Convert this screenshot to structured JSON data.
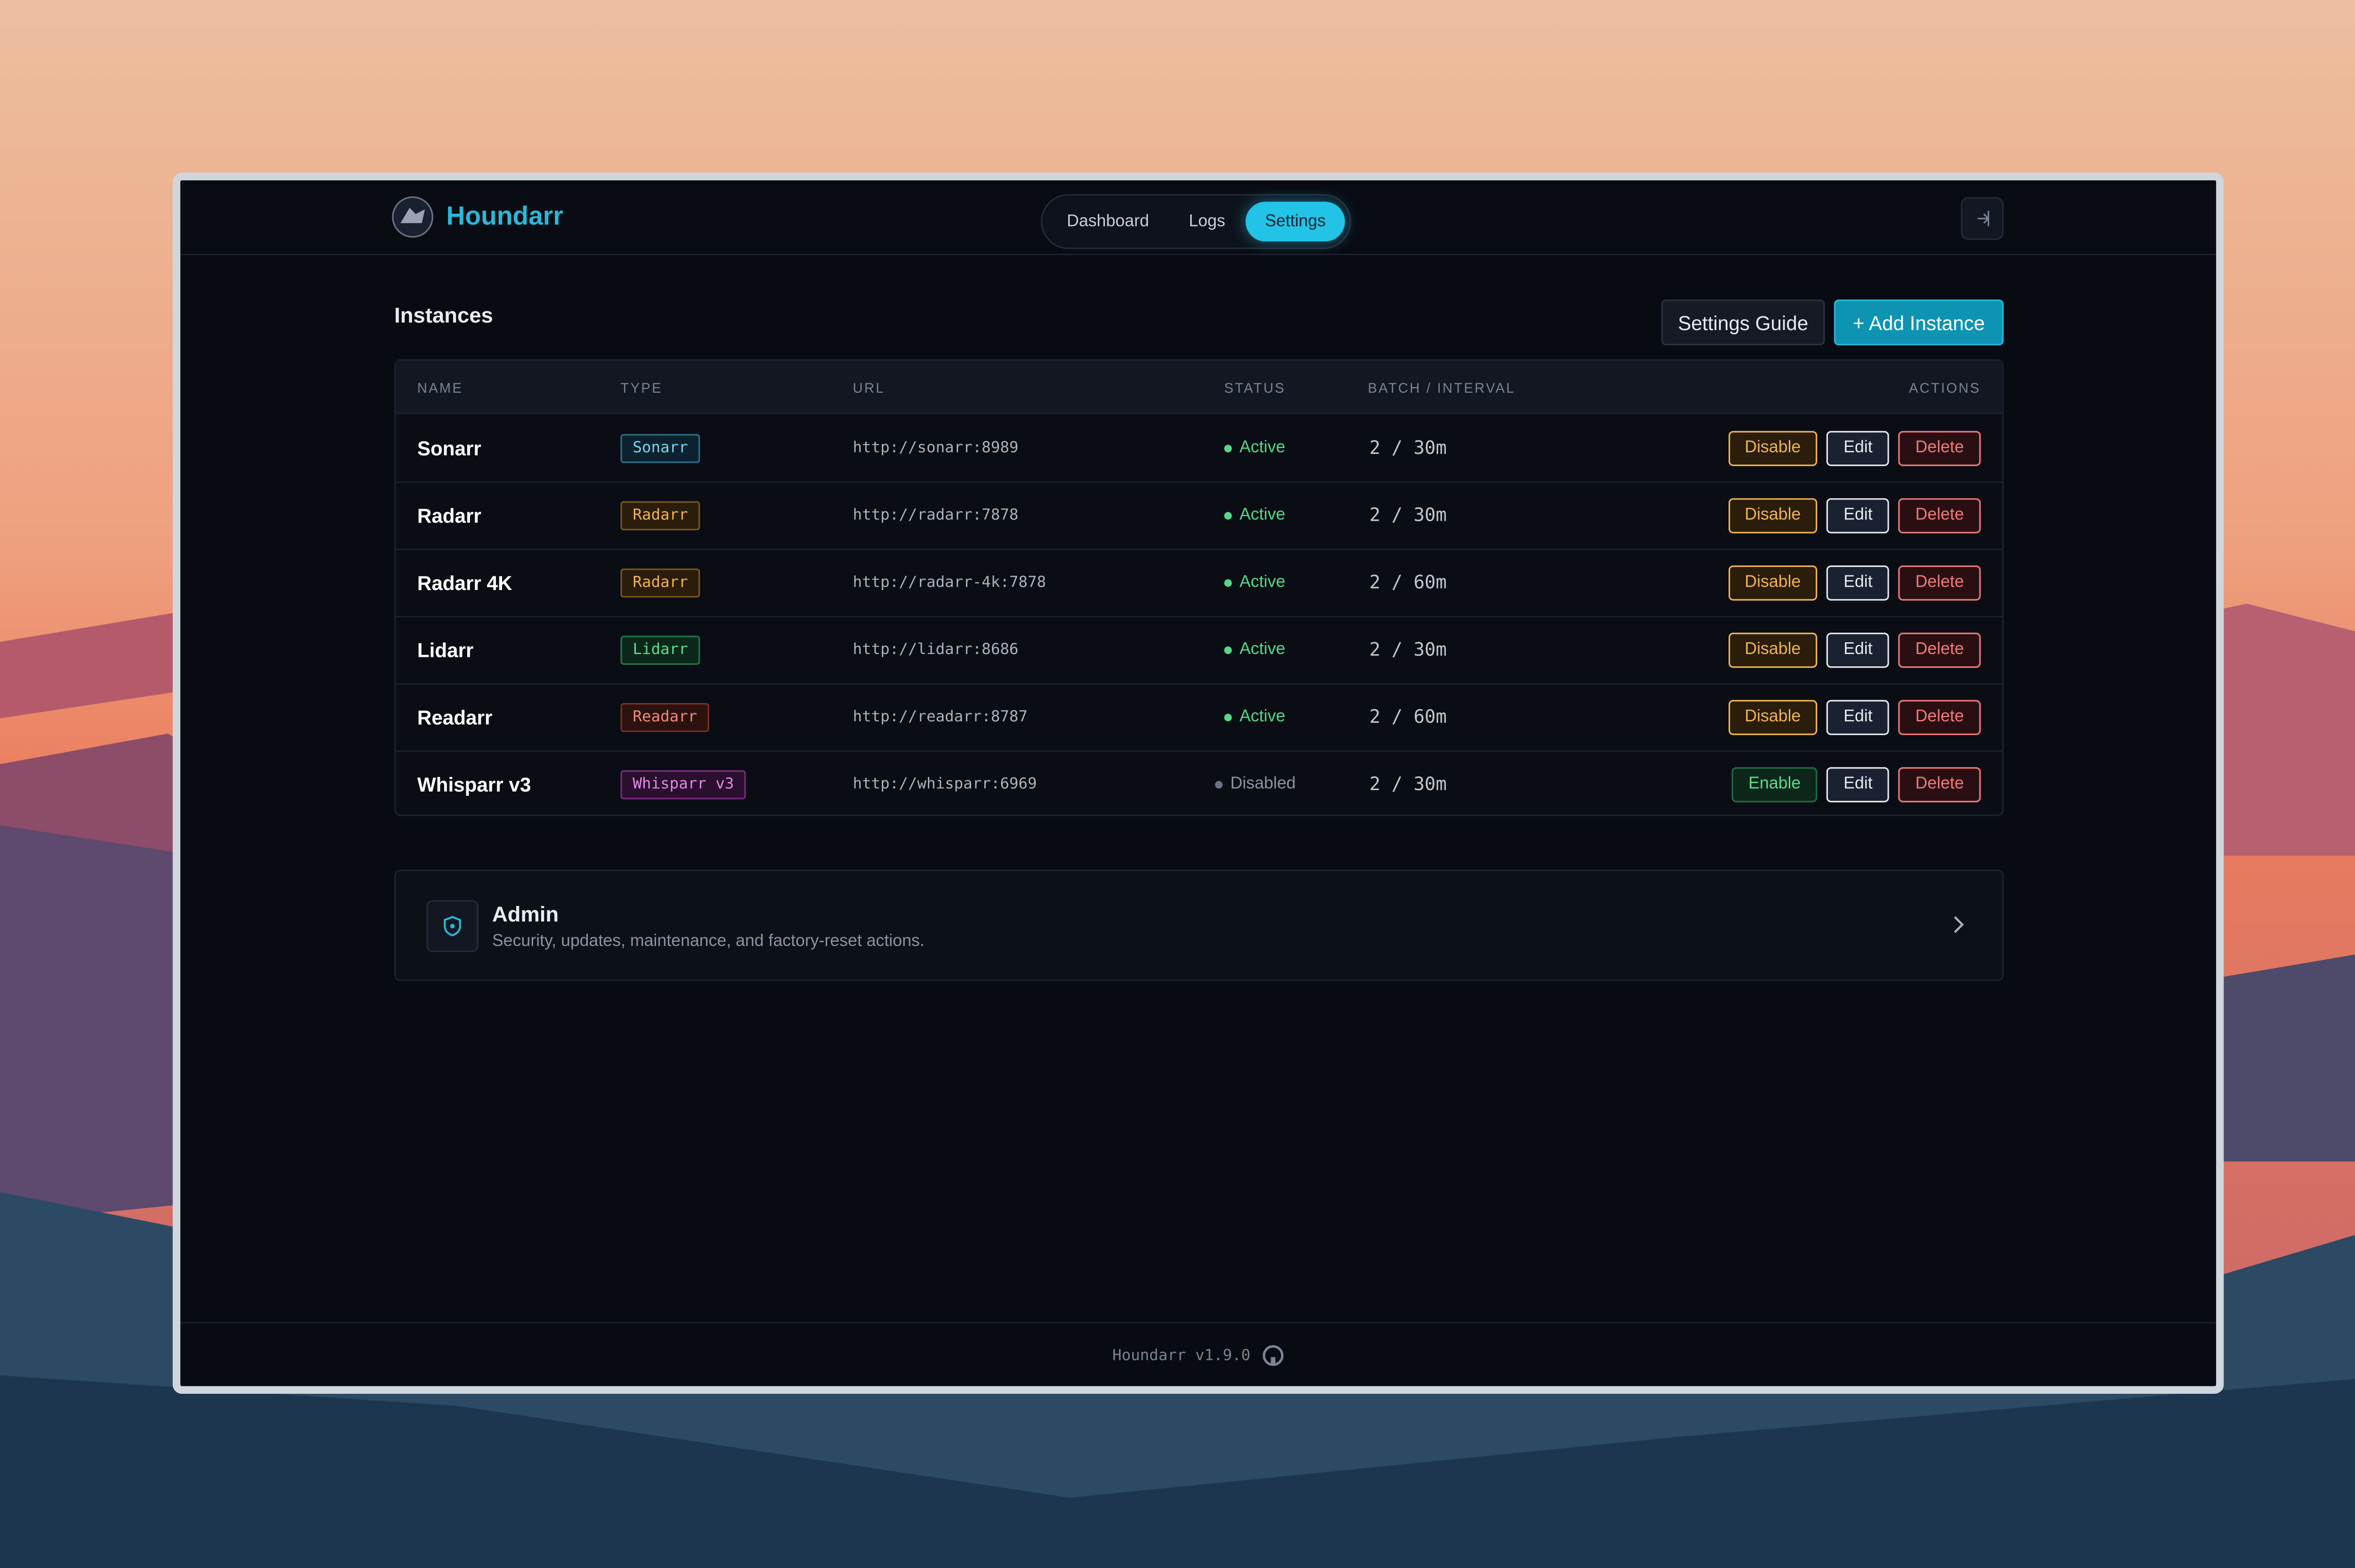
{
  "header": {
    "brand": "Houndarr",
    "nav": [
      "Dashboard",
      "Logs",
      "Settings"
    ]
  },
  "section": {
    "title": "Instances",
    "buttons": [
      "Settings Guide",
      "+ Add Instance"
    ]
  },
  "table": {
    "columns": [
      "NAME",
      "TYPE",
      "URL",
      "STATUS",
      "BATCH / INTERVAL",
      "ACTIONS"
    ],
    "rows": [
      [
        "Sonarr",
        "Sonarr",
        "http://sonarr:8989",
        "Active",
        "2 / 30m",
        [
          "Disable",
          "Edit",
          "Delete"
        ]
      ],
      [
        "Radarr",
        "Radarr",
        "http://radarr:7878",
        "Active",
        "2 / 30m",
        [
          "Disable",
          "Edit",
          "Delete"
        ]
      ],
      [
        "Radarr 4K",
        "Radarr",
        "http://radarr-4k:7878",
        "Active",
        "2 / 60m",
        [
          "Disable",
          "Edit",
          "Delete"
        ]
      ],
      [
        "Lidarr",
        "Lidarr",
        "http://lidarr:8686",
        "Active",
        "2 / 30m",
        [
          "Disable",
          "Edit",
          "Delete"
        ]
      ],
      [
        "Readarr",
        "Readarr",
        "http://readarr:8787",
        "Active",
        "2 / 60m",
        [
          "Disable",
          "Edit",
          "Delete"
        ]
      ],
      [
        "Whisparr v3",
        "Whisparr v3",
        "http://whisparr:6969",
        "Disabled",
        "2 / 30m",
        [
          "Enable",
          "Edit",
          "Delete"
        ]
      ]
    ]
  },
  "admin": {
    "title": "Admin",
    "description": "Security, updates, maintenance, and factory-reset actions."
  },
  "footer": {
    "version": "Houndarr v1.9.0"
  }
}
